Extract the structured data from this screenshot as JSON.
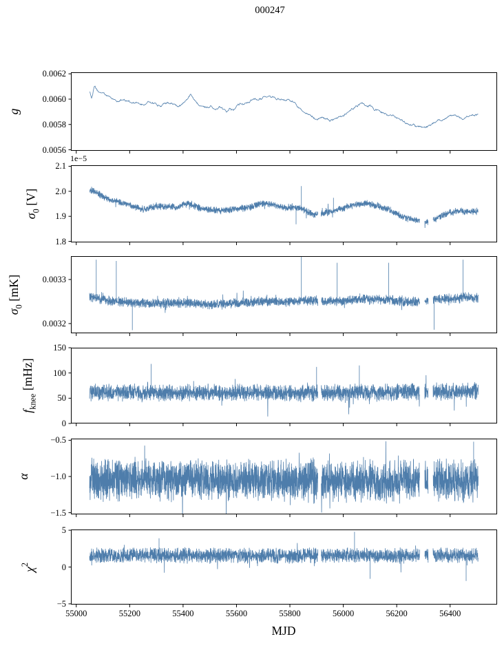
{
  "title": "000247",
  "xlabel": "MJD",
  "colors": {
    "line": "#4e7dab",
    "axis": "#000000",
    "text": "#000000",
    "background": "#ffffff"
  },
  "x_axis": {
    "lim": [
      54980,
      56576
    ],
    "tick_values": [
      55000,
      55200,
      55400,
      55600,
      55800,
      56000,
      56200,
      56400
    ],
    "tick_labels": [
      "55000",
      "55200",
      "55400",
      "55600",
      "55800",
      "56000",
      "56200",
      "56400"
    ],
    "data_start": 55050,
    "data_end": 56505
  },
  "gaps": [
    [
      55905,
      55917
    ],
    [
      56286,
      56305
    ],
    [
      56318,
      56336
    ]
  ],
  "chart_data": [
    {
      "type": "line",
      "name": "g",
      "ylabel": [
        {
          "t": "g",
          "s": "i"
        }
      ],
      "ylim": [
        0.005592,
        0.006212
      ],
      "ytick_values": [
        0.0056,
        0.0058,
        0.006,
        0.0062
      ],
      "ytick_labels": [
        "0.0056",
        "0.0058",
        "0.0060",
        "0.0062"
      ],
      "offset_text": "",
      "noise": {
        "amp": 8e-06,
        "tail_p": 0,
        "tail_gain": 1,
        "smooth": 0.85
      },
      "points_n": 1000,
      "use_gaps": false,
      "spikes": [],
      "trend": [
        [
          55050,
          0.00606
        ],
        [
          55058,
          0.00601
        ],
        [
          55068,
          0.0061
        ],
        [
          55080,
          0.00606
        ],
        [
          55095,
          0.00605
        ],
        [
          55110,
          0.00603
        ],
        [
          55125,
          0.00601
        ],
        [
          55140,
          0.006
        ],
        [
          55155,
          0.00598
        ],
        [
          55170,
          0.006
        ],
        [
          55185,
          0.00599
        ],
        [
          55200,
          0.00598
        ],
        [
          55215,
          0.00597
        ],
        [
          55235,
          0.00596
        ],
        [
          55255,
          0.00595
        ],
        [
          55270,
          0.00598
        ],
        [
          55285,
          0.00597
        ],
        [
          55300,
          0.00596
        ],
        [
          55315,
          0.00595
        ],
        [
          55335,
          0.00597
        ],
        [
          55355,
          0.00596
        ],
        [
          55375,
          0.00595
        ],
        [
          55395,
          0.00596
        ],
        [
          55415,
          0.006
        ],
        [
          55428,
          0.00604
        ],
        [
          55440,
          0.00599
        ],
        [
          55455,
          0.00597
        ],
        [
          55470,
          0.00596
        ],
        [
          55490,
          0.00594
        ],
        [
          55505,
          0.00595
        ],
        [
          55520,
          0.00593
        ],
        [
          55535,
          0.00594
        ],
        [
          55550,
          0.00592
        ],
        [
          55562,
          0.00591
        ],
        [
          55575,
          0.00594
        ],
        [
          55588,
          0.00592
        ],
        [
          55600,
          0.00595
        ],
        [
          55615,
          0.00597
        ],
        [
          55630,
          0.00596
        ],
        [
          55650,
          0.00598
        ],
        [
          55670,
          0.00599
        ],
        [
          55690,
          0.006
        ],
        [
          55710,
          0.00601
        ],
        [
          55725,
          0.00602
        ],
        [
          55740,
          0.00601
        ],
        [
          55755,
          0.006
        ],
        [
          55770,
          0.00599
        ],
        [
          55785,
          0.006
        ],
        [
          55800,
          0.00599
        ],
        [
          55815,
          0.00597
        ],
        [
          55830,
          0.00594
        ],
        [
          55845,
          0.00592
        ],
        [
          55860,
          0.0059
        ],
        [
          55875,
          0.00587
        ],
        [
          55890,
          0.00585
        ],
        [
          55905,
          0.00584
        ],
        [
          55920,
          0.00585
        ],
        [
          55935,
          0.00584
        ],
        [
          55950,
          0.00583
        ],
        [
          55965,
          0.00584
        ],
        [
          55980,
          0.00584
        ],
        [
          56000,
          0.00586
        ],
        [
          56015,
          0.00589
        ],
        [
          56030,
          0.00592
        ],
        [
          56045,
          0.00594
        ],
        [
          56060,
          0.00596
        ],
        [
          56075,
          0.00597
        ],
        [
          56090,
          0.00595
        ],
        [
          56105,
          0.00594
        ],
        [
          56120,
          0.00592
        ],
        [
          56135,
          0.00591
        ],
        [
          56150,
          0.00589
        ],
        [
          56165,
          0.00588
        ],
        [
          56180,
          0.00586
        ],
        [
          56195,
          0.00585
        ],
        [
          56210,
          0.00584
        ],
        [
          56225,
          0.00582
        ],
        [
          56240,
          0.00581
        ],
        [
          56255,
          0.0058
        ],
        [
          56270,
          0.00579
        ],
        [
          56285,
          0.00578
        ],
        [
          56300,
          0.00577
        ],
        [
          56315,
          0.00578
        ],
        [
          56330,
          0.0058
        ],
        [
          56345,
          0.00582
        ],
        [
          56360,
          0.00583
        ],
        [
          56375,
          0.00584
        ],
        [
          56390,
          0.00585
        ],
        [
          56405,
          0.00586
        ],
        [
          56420,
          0.00587
        ],
        [
          56435,
          0.00586
        ],
        [
          56450,
          0.00585
        ],
        [
          56465,
          0.00586
        ],
        [
          56480,
          0.00587
        ],
        [
          56495,
          0.00588
        ],
        [
          56505,
          0.00587
        ]
      ]
    },
    {
      "type": "line",
      "name": "sigma0-v",
      "ylabel": [
        {
          "t": "σ",
          "s": "i"
        },
        {
          "t": "0",
          "s": "sub"
        },
        {
          "t": " [V]",
          "s": "n"
        }
      ],
      "ylim": [
        1.796,
        2.104
      ],
      "ytick_values": [
        1.8,
        1.9,
        2.0,
        2.1
      ],
      "ytick_labels": [
        "1.8",
        "1.9",
        "2.0",
        "2.1"
      ],
      "offset_text": "1e−5",
      "noise": {
        "amp": 0.016,
        "tail_p": 0.012,
        "tail_gain": 2.1,
        "smooth": 0
      },
      "points_n": 2800,
      "use_gaps": true,
      "spikes": [
        [
          55843,
          2.021
        ],
        [
          55963,
          1.974
        ],
        [
          55823,
          1.868
        ]
      ],
      "trend": [
        [
          55050,
          2.005
        ],
        [
          55070,
          2.0
        ],
        [
          55085,
          1.99
        ],
        [
          55100,
          1.978
        ],
        [
          55120,
          1.97
        ],
        [
          55140,
          1.963
        ],
        [
          55160,
          1.958
        ],
        [
          55180,
          1.952
        ],
        [
          55200,
          1.945
        ],
        [
          55220,
          1.936
        ],
        [
          55240,
          1.93
        ],
        [
          55260,
          1.928
        ],
        [
          55280,
          1.936
        ],
        [
          55300,
          1.94
        ],
        [
          55320,
          1.939
        ],
        [
          55340,
          1.938
        ],
        [
          55360,
          1.937
        ],
        [
          55380,
          1.936
        ],
        [
          55400,
          1.948
        ],
        [
          55420,
          1.952
        ],
        [
          55435,
          1.945
        ],
        [
          55450,
          1.938
        ],
        [
          55470,
          1.932
        ],
        [
          55490,
          1.928
        ],
        [
          55510,
          1.925
        ],
        [
          55530,
          1.923
        ],
        [
          55550,
          1.922
        ],
        [
          55570,
          1.926
        ],
        [
          55590,
          1.929
        ],
        [
          55610,
          1.931
        ],
        [
          55630,
          1.933
        ],
        [
          55650,
          1.937
        ],
        [
          55670,
          1.943
        ],
        [
          55690,
          1.95
        ],
        [
          55710,
          1.952
        ],
        [
          55730,
          1.948
        ],
        [
          55750,
          1.942
        ],
        [
          55770,
          1.936
        ],
        [
          55790,
          1.934
        ],
        [
          55810,
          1.937
        ],
        [
          55830,
          1.934
        ],
        [
          55850,
          1.928
        ],
        [
          55870,
          1.915
        ],
        [
          55890,
          1.906
        ],
        [
          55910,
          1.908
        ],
        [
          55930,
          1.913
        ],
        [
          55950,
          1.918
        ],
        [
          55970,
          1.924
        ],
        [
          55990,
          1.929
        ],
        [
          56010,
          1.936
        ],
        [
          56030,
          1.941
        ],
        [
          56050,
          1.946
        ],
        [
          56070,
          1.95
        ],
        [
          56090,
          1.951
        ],
        [
          56110,
          1.947
        ],
        [
          56130,
          1.941
        ],
        [
          56150,
          1.934
        ],
        [
          56170,
          1.927
        ],
        [
          56190,
          1.915
        ],
        [
          56210,
          1.905
        ],
        [
          56230,
          1.896
        ],
        [
          56250,
          1.89
        ],
        [
          56270,
          1.885
        ],
        [
          56290,
          1.883
        ],
        [
          56310,
          1.877
        ],
        [
          56330,
          1.883
        ],
        [
          56350,
          1.892
        ],
        [
          56370,
          1.903
        ],
        [
          56390,
          1.912
        ],
        [
          56410,
          1.918
        ],
        [
          56430,
          1.921
        ],
        [
          56450,
          1.92
        ],
        [
          56470,
          1.917
        ],
        [
          56490,
          1.919
        ],
        [
          56505,
          1.92
        ]
      ]
    },
    {
      "type": "line",
      "name": "sigma0-mk",
      "ylabel": [
        {
          "t": "σ",
          "s": "i"
        },
        {
          "t": "0",
          "s": "sub"
        },
        {
          "t": " [mK]",
          "s": "n"
        }
      ],
      "ylim": [
        0.003178,
        0.003353
      ],
      "ytick_values": [
        0.0032,
        0.0033
      ],
      "ytick_labels": [
        "0.0032",
        "0.0033"
      ],
      "offset_text": "",
      "noise": {
        "amp": 1.25e-05,
        "tail_p": 0.02,
        "tail_gain": 2.2,
        "smooth": 0
      },
      "points_n": 3000,
      "use_gaps": true,
      "spikes": [
        [
          55075,
          0.003345
        ],
        [
          55150,
          0.003342
        ],
        [
          55843,
          0.003352
        ],
        [
          55977,
          0.003338
        ],
        [
          56170,
          0.003338
        ],
        [
          56448,
          0.003345
        ],
        [
          55210,
          0.003185
        ],
        [
          56340,
          0.003186
        ]
      ],
      "trend": [
        [
          55050,
          0.003262
        ],
        [
          55090,
          0.003256
        ],
        [
          55130,
          0.003252
        ],
        [
          55170,
          0.003249
        ],
        [
          55210,
          0.003247
        ],
        [
          55250,
          0.003247
        ],
        [
          55290,
          0.003245
        ],
        [
          55330,
          0.003246
        ],
        [
          55370,
          0.003247
        ],
        [
          55410,
          0.003247
        ],
        [
          55450,
          0.003245
        ],
        [
          55490,
          0.003243
        ],
        [
          55530,
          0.003244
        ],
        [
          55570,
          0.003245
        ],
        [
          55610,
          0.003247
        ],
        [
          55650,
          0.003248
        ],
        [
          55690,
          0.00325
        ],
        [
          55730,
          0.00325
        ],
        [
          55770,
          0.003249
        ],
        [
          55810,
          0.00325
        ],
        [
          55850,
          0.003252
        ],
        [
          55890,
          0.003252
        ],
        [
          55930,
          0.00325
        ],
        [
          55970,
          0.003251
        ],
        [
          56010,
          0.003253
        ],
        [
          56050,
          0.003255
        ],
        [
          56090,
          0.003256
        ],
        [
          56130,
          0.003254
        ],
        [
          56170,
          0.003253
        ],
        [
          56210,
          0.003251
        ],
        [
          56250,
          0.003248
        ],
        [
          56290,
          0.003252
        ],
        [
          56330,
          0.003254
        ],
        [
          56370,
          0.003256
        ],
        [
          56410,
          0.003257
        ],
        [
          56450,
          0.003259
        ],
        [
          56490,
          0.003259
        ],
        [
          56505,
          0.003258
        ]
      ]
    },
    {
      "type": "line",
      "name": "fknee",
      "ylabel": [
        {
          "t": "f",
          "s": "i"
        },
        {
          "t": "knee",
          "s": "sub"
        },
        {
          "t": " [mHz]",
          "s": "n"
        }
      ],
      "ylim": [
        0,
        150
      ],
      "ytick_values": [
        0,
        50,
        100,
        150
      ],
      "ytick_labels": [
        "0",
        "50",
        "100",
        "150"
      ],
      "offset_text": "",
      "noise": {
        "amp": 19,
        "tail_p": 0.02,
        "tail_gain": 1.9,
        "smooth": 0
      },
      "points_n": 3000,
      "use_gaps": true,
      "spikes": [
        [
          55280,
          118
        ],
        [
          55900,
          112
        ],
        [
          56060,
          115
        ]
      ],
      "trend": [
        [
          55050,
          62
        ],
        [
          55300,
          60
        ],
        [
          55600,
          61
        ],
        [
          55900,
          60
        ],
        [
          56200,
          62
        ],
        [
          56500,
          63
        ]
      ]
    },
    {
      "type": "line",
      "name": "alpha",
      "ylabel": [
        {
          "t": "α",
          "s": "i"
        }
      ],
      "ylim": [
        -1.523,
        -0.477
      ],
      "ytick_values": [
        -1.5,
        -1.0,
        -0.5
      ],
      "ytick_labels": [
        "−1.5",
        "−1.0",
        "−0.5"
      ],
      "offset_text": "",
      "noise": {
        "amp": 0.33,
        "tail_p": 0.015,
        "tail_gain": 1.6,
        "smooth": 0
      },
      "points_n": 3200,
      "use_gaps": true,
      "spikes": [
        [
          56488,
          -0.52
        ]
      ],
      "trend": [
        [
          55050,
          -1.05
        ],
        [
          55400,
          -1.04
        ],
        [
          55800,
          -1.05
        ],
        [
          56100,
          -1.06
        ],
        [
          56500,
          -1.05
        ]
      ]
    },
    {
      "type": "line",
      "name": "chi2",
      "ylabel": [
        {
          "t": "χ",
          "s": "i"
        },
        {
          "t": "2",
          "s": "sup"
        }
      ],
      "ylim": [
        -5.1,
        5.1
      ],
      "ytick_values": [
        -5,
        0,
        5
      ],
      "ytick_labels": [
        "−5",
        "0",
        "5"
      ],
      "offset_text": "",
      "noise": {
        "amp": 1.15,
        "tail_p": 0.012,
        "tail_gain": 1.8,
        "smooth": 0
      },
      "points_n": 3000,
      "use_gaps": true,
      "spikes": [
        [
          55310,
          3.9
        ],
        [
          56042,
          4.8
        ],
        [
          56100,
          -1.6
        ],
        [
          56460,
          -1.9
        ]
      ],
      "trend": [
        [
          55050,
          1.5
        ],
        [
          55400,
          1.6
        ],
        [
          55700,
          1.5
        ],
        [
          56000,
          1.55
        ],
        [
          56500,
          1.6
        ]
      ]
    }
  ]
}
